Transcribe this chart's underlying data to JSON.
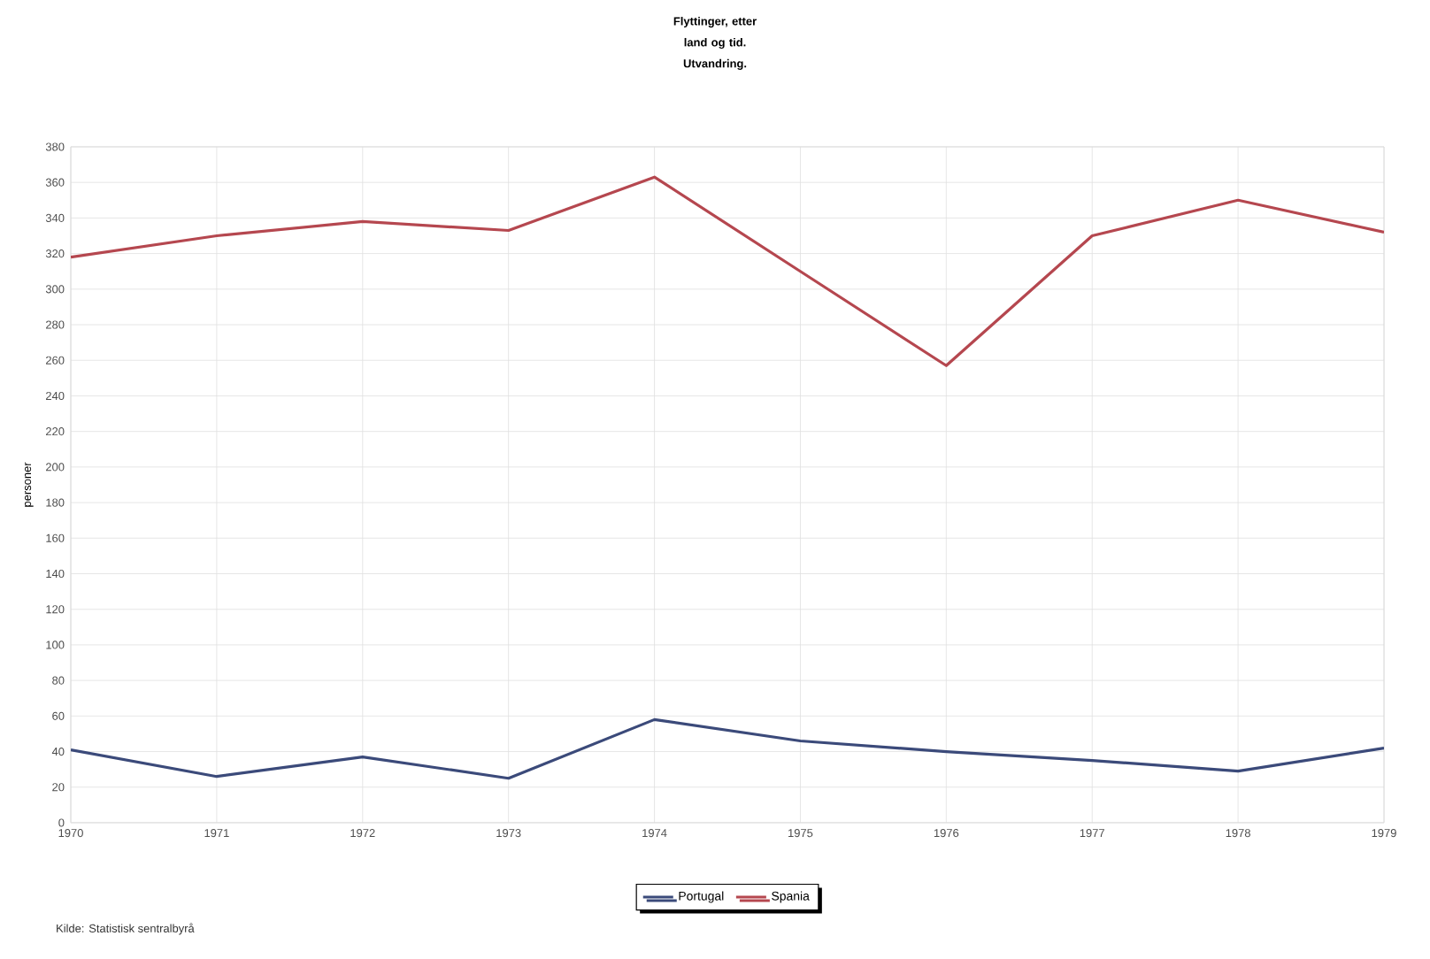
{
  "chart_data": {
    "type": "line",
    "title": "Flyttinger, etter land og tid. Utvandring.",
    "ylabel": "personer",
    "categories": [
      "1970",
      "1971",
      "1972",
      "1973",
      "1974",
      "1975",
      "1976",
      "1977",
      "1978",
      "1979"
    ],
    "series": [
      {
        "name": "Portugal",
        "color": "#3b4a7a",
        "values": [
          41,
          26,
          37,
          25,
          58,
          46,
          40,
          35,
          29,
          42
        ]
      },
      {
        "name": "Spania",
        "color": "#b5474f",
        "values": [
          318,
          330,
          338,
          333,
          363,
          310,
          257,
          330,
          350,
          332
        ]
      }
    ],
    "ylim": [
      0,
      380
    ],
    "yticks": [
      0,
      20,
      40,
      60,
      80,
      100,
      120,
      140,
      160,
      180,
      200,
      220,
      240,
      260,
      280,
      300,
      320,
      340,
      360,
      380
    ],
    "grid": true,
    "legend": "bottom",
    "marker": "none",
    "line_style": "solid",
    "annotations": [
      "Kilde: Statistisk sentralbyrå"
    ]
  }
}
